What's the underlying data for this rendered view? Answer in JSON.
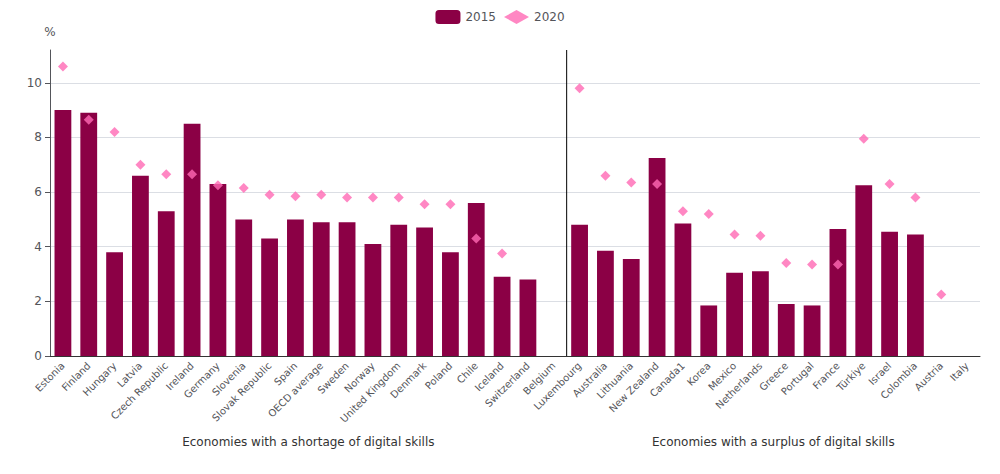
{
  "chart_data": {
    "type": "bar",
    "categories": [
      "Estonia",
      "Finland",
      "Hungary",
      "Latvia",
      "Czech Republic",
      "Ireland",
      "Germany",
      "Slovenia",
      "Slovak Republic",
      "Spain",
      "OECD average",
      "Sweden",
      "Norway",
      "United Kingdom",
      "Denmark",
      "Poland",
      "Chile",
      "Iceland",
      "Switzerland",
      "Belgium",
      "Luxembourg",
      "Australia",
      "Lithuania",
      "New Zealand",
      "Canada1",
      "Korea",
      "Mexico",
      "Netherlands",
      "Greece",
      "Portugal",
      "France",
      "Türkiye",
      "Israel",
      "Colombia",
      "Austria",
      "Italy"
    ],
    "series": [
      {
        "name": "2015",
        "type": "bar",
        "color": "#8B0045",
        "values": [
          9.0,
          8.9,
          3.8,
          6.6,
          5.3,
          8.5,
          6.3,
          5.0,
          4.3,
          5.0,
          4.9,
          4.9,
          4.1,
          4.8,
          4.7,
          3.8,
          5.6,
          2.9,
          2.8,
          null,
          4.8,
          3.85,
          3.55,
          7.25,
          4.85,
          1.85,
          3.05,
          3.1,
          1.9,
          1.85,
          4.65,
          6.25,
          4.55,
          4.45,
          null,
          null
        ]
      },
      {
        "name": "2020",
        "type": "scatter",
        "marker": "diamond",
        "color": "#FF69B4",
        "values": [
          10.6,
          8.65,
          8.2,
          7.0,
          6.65,
          6.65,
          6.25,
          6.15,
          5.9,
          5.85,
          5.9,
          5.8,
          5.8,
          5.8,
          5.55,
          5.55,
          4.3,
          3.75,
          null,
          null,
          9.8,
          6.6,
          6.35,
          6.3,
          5.3,
          5.2,
          4.45,
          4.4,
          3.4,
          3.35,
          3.35,
          7.95,
          6.3,
          5.8,
          2.25,
          null
        ]
      }
    ],
    "ylabel": "%",
    "ylim": [
      0,
      11.2
    ],
    "yticks": [
      0,
      2,
      4,
      6,
      8,
      10
    ],
    "grid": true,
    "legend": "top",
    "groups": [
      {
        "label": "Economies with a shortage of digital skills",
        "start": "Estonia",
        "end": "Belgium"
      },
      {
        "label": "Economies with a surplus of digital skills",
        "start": "Luxembourg",
        "end": "Italy"
      }
    ]
  }
}
